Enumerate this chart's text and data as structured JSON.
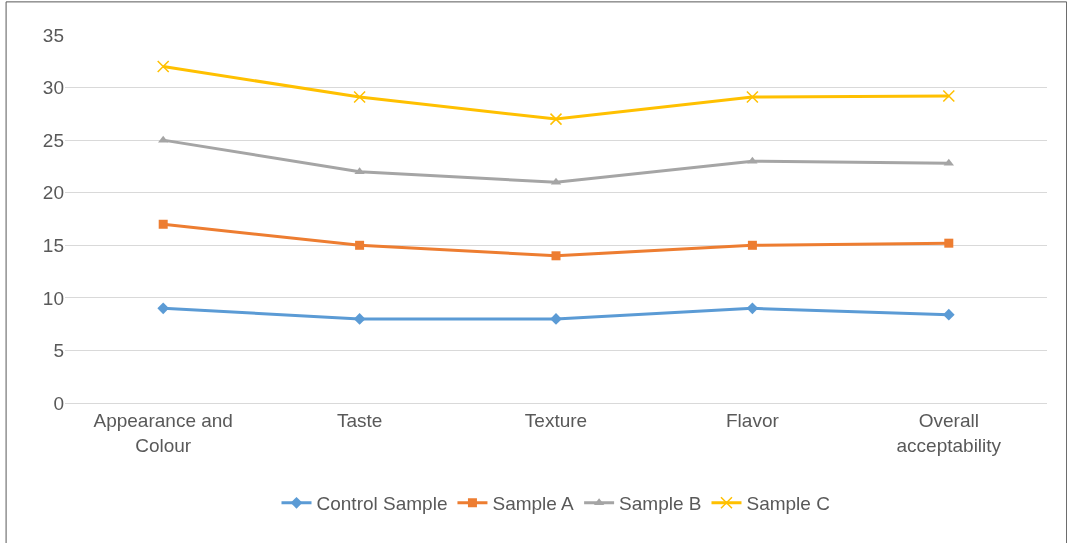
{
  "chart_data": {
    "type": "line",
    "categories": [
      "Appearance and Colour",
      "Taste",
      "Texture",
      "Flavor",
      "Overall acceptability"
    ],
    "series": [
      {
        "name": "Control Sample",
        "color": "#5b9bd5",
        "marker": "diamond",
        "values": [
          9,
          8,
          8,
          9,
          8.4
        ]
      },
      {
        "name": "Sample A",
        "color": "#ed7d31",
        "marker": "square",
        "values": [
          17,
          15,
          14,
          15,
          15.2
        ]
      },
      {
        "name": "Sample B",
        "color": "#a5a5a5",
        "marker": "triangle",
        "values": [
          25,
          22,
          21,
          23,
          22.8
        ]
      },
      {
        "name": "Sample C",
        "color": "#ffc000",
        "marker": "cross",
        "values": [
          32,
          29.1,
          27,
          29.1,
          29.2
        ]
      }
    ],
    "ylim": [
      0,
      35
    ],
    "yticks": [
      0,
      5,
      10,
      15,
      20,
      25,
      30,
      35
    ],
    "grid": "y",
    "legend": "bottom",
    "line_style": "solid"
  }
}
